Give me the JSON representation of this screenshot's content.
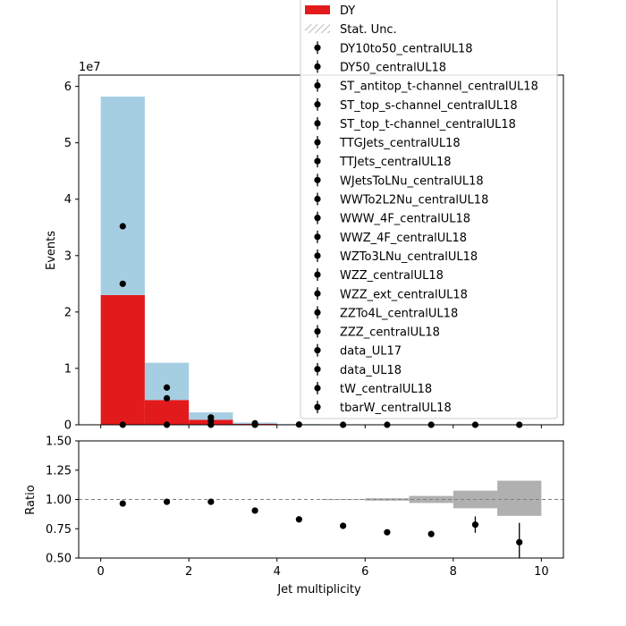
{
  "chart_data": [
    {
      "type": "bar",
      "panel": "main",
      "stacked": true,
      "bin_edges": [
        0,
        1,
        2,
        3,
        4,
        5,
        6,
        7,
        8,
        9,
        10
      ],
      "ylabel": "Events",
      "y_exponent_label": "1e7",
      "ylim": [
        0,
        62000000
      ],
      "yticks": [
        0,
        10000000,
        20000000,
        30000000,
        40000000,
        50000000,
        60000000
      ],
      "ytick_labels": [
        "0",
        "1",
        "2",
        "3",
        "4",
        "5",
        "6"
      ],
      "series": [
        {
          "name": "DY",
          "color": "#e31a1c",
          "values": [
            23000000,
            4400000,
            900000,
            180000,
            60000,
            20000,
            5000,
            1500,
            500,
            200
          ]
        },
        {
          "name": "",
          "color": "#a6cee3",
          "values": [
            35200000,
            6600000,
            1300000,
            220000,
            60000,
            15000,
            3000,
            500,
            200,
            100
          ]
        }
      ],
      "data_points": [
        {
          "x": 0.5,
          "y": 35200000
        },
        {
          "x": 0.5,
          "y": 25000000
        },
        {
          "x": 0.5,
          "y": 0
        },
        {
          "x": 1.5,
          "y": 6600000
        },
        {
          "x": 1.5,
          "y": 4700000
        },
        {
          "x": 1.5,
          "y": 0
        },
        {
          "x": 2.5,
          "y": 1300000
        },
        {
          "x": 2.5,
          "y": 700000
        },
        {
          "x": 2.5,
          "y": 0
        },
        {
          "x": 3.5,
          "y": 260000
        },
        {
          "x": 3.5,
          "y": 0
        },
        {
          "x": 4.5,
          "y": 40000
        },
        {
          "x": 5.5,
          "y": 0
        },
        {
          "x": 6.5,
          "y": 0
        },
        {
          "x": 7.5,
          "y": 0
        },
        {
          "x": 8.5,
          "y": 0
        },
        {
          "x": 9.5,
          "y": 0
        }
      ],
      "legend_placement": "top-right",
      "legend": [
        {
          "label": "DY",
          "kind": "patch",
          "color": "#e31a1c"
        },
        {
          "label": "Stat. Unc.",
          "kind": "hatch"
        },
        {
          "label": "DY10to50_centralUL18",
          "kind": "marker"
        },
        {
          "label": "DY50_centralUL18",
          "kind": "marker"
        },
        {
          "label": "ST_antitop_t-channel_centralUL18",
          "kind": "marker"
        },
        {
          "label": "ST_top_s-channel_centralUL18",
          "kind": "marker"
        },
        {
          "label": "ST_top_t-channel_centralUL18",
          "kind": "marker"
        },
        {
          "label": "TTGJets_centralUL18",
          "kind": "marker"
        },
        {
          "label": "TTJets_centralUL18",
          "kind": "marker"
        },
        {
          "label": "WJetsToLNu_centralUL18",
          "kind": "marker"
        },
        {
          "label": "WWTo2L2Nu_centralUL18",
          "kind": "marker"
        },
        {
          "label": "WWW_4F_centralUL18",
          "kind": "marker"
        },
        {
          "label": "WWZ_4F_centralUL18",
          "kind": "marker"
        },
        {
          "label": "WZTo3LNu_centralUL18",
          "kind": "marker"
        },
        {
          "label": "WZZ_centralUL18",
          "kind": "marker"
        },
        {
          "label": "WZZ_ext_centralUL18",
          "kind": "marker"
        },
        {
          "label": "ZZTo4L_centralUL18",
          "kind": "marker"
        },
        {
          "label": "ZZZ_centralUL18",
          "kind": "marker"
        },
        {
          "label": "data_UL17",
          "kind": "marker"
        },
        {
          "label": "data_UL18",
          "kind": "marker"
        },
        {
          "label": "tW_centralUL18",
          "kind": "marker"
        },
        {
          "label": "tbarW_centralUL18",
          "kind": "marker"
        }
      ]
    },
    {
      "type": "scatter",
      "panel": "ratio",
      "xlabel": "Jet multiplicity",
      "ylabel": "Ratio",
      "xlim": [
        -0.5,
        10.5
      ],
      "ylim": [
        0.5,
        1.5
      ],
      "xticks": [
        0,
        2,
        4,
        6,
        8,
        10
      ],
      "xtick_labels": [
        "0",
        "2",
        "4",
        "6",
        "8",
        "10"
      ],
      "yticks": [
        0.5,
        0.75,
        1.0,
        1.25,
        1.5
      ],
      "ytick_labels": [
        "0.50",
        "0.75",
        "1.00",
        "1.25",
        "1.50"
      ],
      "reference_line": 1.0,
      "points": [
        {
          "x": 0.5,
          "y": 0.965,
          "err": 0
        },
        {
          "x": 1.5,
          "y": 0.98,
          "err": 0
        },
        {
          "x": 2.5,
          "y": 0.98,
          "err": 0
        },
        {
          "x": 3.5,
          "y": 0.905,
          "err": 0
        },
        {
          "x": 4.5,
          "y": 0.83,
          "err": 0
        },
        {
          "x": 5.5,
          "y": 0.775,
          "err": 0
        },
        {
          "x": 6.5,
          "y": 0.72,
          "err": 0
        },
        {
          "x": 7.5,
          "y": 0.705,
          "err": 0
        },
        {
          "x": 8.5,
          "y": 0.785,
          "err": 0.07
        },
        {
          "x": 9.5,
          "y": 0.635,
          "err": 0.165
        }
      ],
      "uncertainty_bands": [
        {
          "x0": 5,
          "x1": 6,
          "lo": 0.997,
          "hi": 1.003
        },
        {
          "x0": 6,
          "x1": 7,
          "lo": 0.99,
          "hi": 1.01
        },
        {
          "x0": 7,
          "x1": 8,
          "lo": 0.97,
          "hi": 1.03
        },
        {
          "x0": 8,
          "x1": 9,
          "lo": 0.925,
          "hi": 1.075
        },
        {
          "x0": 9,
          "x1": 10,
          "lo": 0.86,
          "hi": 1.16
        }
      ]
    }
  ]
}
